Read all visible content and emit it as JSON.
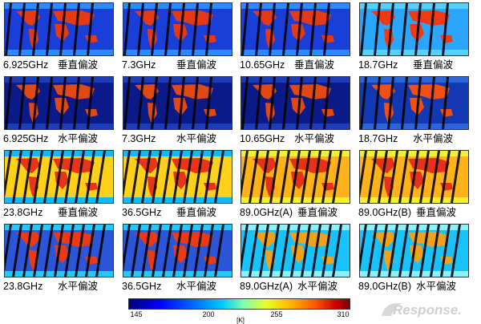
{
  "panels": [
    {
      "freq": "6.925GHz",
      "pol": "垂直偏波",
      "theme": "v-low"
    },
    {
      "freq": "7.3GHz",
      "pol": "垂直偏波",
      "theme": "v-low"
    },
    {
      "freq": "10.65GHz",
      "pol": "垂直偏波",
      "theme": "v-low"
    },
    {
      "freq": "18.7GHz",
      "pol": "垂直偏波",
      "theme": "v-mid"
    },
    {
      "freq": "6.925GHz",
      "pol": "水平偏波",
      "theme": "h-low"
    },
    {
      "freq": "7.3GHz",
      "pol": "水平偏波",
      "theme": "h-low"
    },
    {
      "freq": "10.65GHz",
      "pol": "水平偏波",
      "theme": "h-low"
    },
    {
      "freq": "18.7GHz",
      "pol": "水平偏波",
      "theme": "h-low2"
    },
    {
      "freq": "23.8GHz",
      "pol": "垂直偏波",
      "theme": "v-wv"
    },
    {
      "freq": "36.5GHz",
      "pol": "垂直偏波",
      "theme": "v-wv"
    },
    {
      "freq": "89.0GHz(A)",
      "pol": "垂直偏波",
      "theme": "v-hi"
    },
    {
      "freq": "89.0GHz(B)",
      "pol": "垂直偏波",
      "theme": "v-hi"
    },
    {
      "freq": "23.8GHz",
      "pol": "水平偏波",
      "theme": "h-wv"
    },
    {
      "freq": "36.5GHz",
      "pol": "水平偏波",
      "theme": "h-wv"
    },
    {
      "freq": "89.0GHz(A)",
      "pol": "水平偏波",
      "theme": "h-hi"
    },
    {
      "freq": "89.0GHz(B)",
      "pol": "水平偏波",
      "theme": "h-hi"
    }
  ],
  "colorbar": {
    "ticks": [
      "145",
      "200",
      "255",
      "310"
    ],
    "unit": "[K]",
    "colors": [
      "#00007a",
      "#0000ff",
      "#00c8ff",
      "#e6ff2a",
      "#ff5a00",
      "#7a0000"
    ]
  },
  "logo": {
    "text": "Response."
  },
  "theme_colors": {
    "v-low": {
      "ocean": "#1a3fd8",
      "land": "#e53a14",
      "ice": "#2b8cff"
    },
    "v-mid": {
      "ocean": "#2aa6ff",
      "land": "#f03a12",
      "ice": "#58d0ff"
    },
    "h-low": {
      "ocean": "#0a1a88",
      "land": "#e04814",
      "ice": "#1d3cb8"
    },
    "h-low2": {
      "ocean": "#1238b4",
      "land": "#f05014",
      "ice": "#2a66d8"
    },
    "v-wv": {
      "ocean": "#ffd11a",
      "land": "#e8341a",
      "ice": "#19b6ff"
    },
    "h-wv": {
      "ocean": "#2c56d8",
      "land": "#ee3a14",
      "ice": "#25c8ff"
    },
    "v-hi": {
      "ocean": "#ffb21a",
      "land": "#e6321a",
      "ice": "#f3ee3c"
    },
    "h-hi": {
      "ocean": "#19c2ff",
      "land": "#f0a21a",
      "ice": "#8cf0ff"
    }
  }
}
